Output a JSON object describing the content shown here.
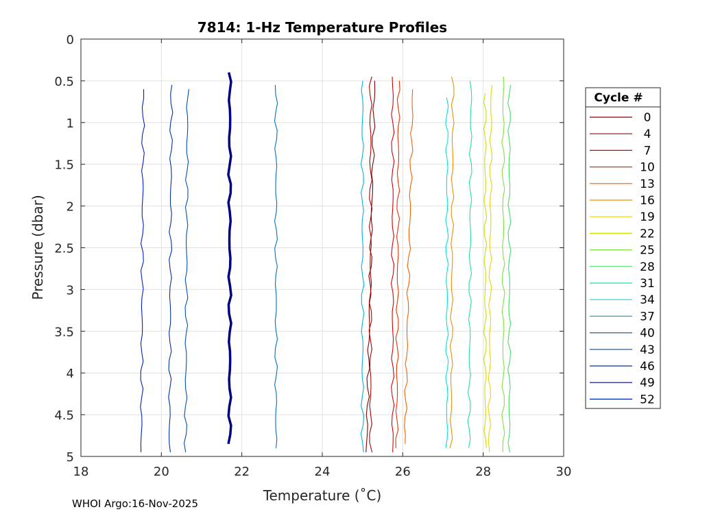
{
  "chart_data": {
    "type": "line",
    "title": "7814: 1-Hz Temperature Profiles",
    "xlabel": "Temperature (˚C)",
    "ylabel": "Pressure (dbar)",
    "xlim": [
      18,
      30
    ],
    "ylim": [
      0,
      5
    ],
    "y_reversed": true,
    "grid": true,
    "x_ticks": [
      18,
      20,
      22,
      24,
      26,
      28,
      30
    ],
    "y_ticks": [
      0,
      0.5,
      1,
      1.5,
      2,
      2.5,
      3,
      3.5,
      4,
      4.5,
      5
    ],
    "legend": {
      "title": "Cycle #",
      "placement": "right-outside",
      "entries": [
        {
          "label": "0",
          "color": "#7f0000"
        },
        {
          "label": "4",
          "color": "#a80000"
        },
        {
          "label": "7",
          "color": "#d40000"
        },
        {
          "label": "10",
          "color": "#e83000"
        },
        {
          "label": "13",
          "color": "#f06000"
        },
        {
          "label": "16",
          "color": "#e89000"
        },
        {
          "label": "19",
          "color": "#f0d000"
        },
        {
          "label": "22",
          "color": "#c8e000"
        },
        {
          "label": "25",
          "color": "#80e040"
        },
        {
          "label": "28",
          "color": "#40e060"
        },
        {
          "label": "31",
          "color": "#20e0a0"
        },
        {
          "label": "34",
          "color": "#00e0e0"
        },
        {
          "label": "37",
          "color": "#00b0e0"
        },
        {
          "label": "40",
          "color": "#0070c0"
        },
        {
          "label": "43",
          "color": "#0050b0"
        },
        {
          "label": "46",
          "color": "#0030a0"
        },
        {
          "label": "49",
          "color": "#000080"
        },
        {
          "label": "52",
          "color": "#0020c0"
        }
      ]
    },
    "series": [
      {
        "name": "0",
        "color": "#7f0000",
        "temp_top": 25.3,
        "temp_bottom": 25.1,
        "p_top": 0.5,
        "p_bottom": 4.95
      },
      {
        "name": "4",
        "color": "#a80000",
        "temp_top": 25.2,
        "temp_bottom": 25.2,
        "p_top": 0.45,
        "p_bottom": 4.95
      },
      {
        "name": "7",
        "color": "#d40000",
        "temp_top": 25.75,
        "temp_bottom": 25.75,
        "p_top": 0.45,
        "p_bottom": 4.95
      },
      {
        "name": "10",
        "color": "#e83000",
        "temp_top": 25.9,
        "temp_bottom": 25.85,
        "p_top": 0.5,
        "p_bottom": 4.9
      },
      {
        "name": "13",
        "color": "#f06000",
        "temp_top": 26.25,
        "temp_bottom": 26.05,
        "p_top": 0.6,
        "p_bottom": 4.85
      },
      {
        "name": "16",
        "color": "#e89000",
        "temp_top": 27.25,
        "temp_bottom": 27.2,
        "p_top": 0.45,
        "p_bottom": 4.9
      },
      {
        "name": "19",
        "color": "#f0d000",
        "temp_top": 28.2,
        "temp_bottom": 28.15,
        "p_top": 0.55,
        "p_bottom": 4.95
      },
      {
        "name": "22",
        "color": "#c8e000",
        "temp_top": 28.05,
        "temp_bottom": 28.05,
        "p_top": 0.65,
        "p_bottom": 4.9
      },
      {
        "name": "25",
        "color": "#80e040",
        "temp_top": 28.5,
        "temp_bottom": 28.5,
        "p_top": 0.45,
        "p_bottom": 4.95
      },
      {
        "name": "28",
        "color": "#40e060",
        "temp_top": 28.65,
        "temp_bottom": 28.65,
        "p_top": 0.55,
        "p_bottom": 4.95
      },
      {
        "name": "31",
        "color": "#20e0a0",
        "temp_top": 27.7,
        "temp_bottom": 27.65,
        "p_top": 0.5,
        "p_bottom": 4.9
      },
      {
        "name": "34",
        "color": "#00e0e0",
        "temp_top": 27.1,
        "temp_bottom": 27.1,
        "p_top": 0.7,
        "p_bottom": 4.9
      },
      {
        "name": "37",
        "color": "#00b0e0",
        "temp_top": 25.0,
        "temp_bottom": 25.0,
        "p_top": 0.5,
        "p_bottom": 4.95
      },
      {
        "name": "40",
        "color": "#0070c0",
        "temp_top": 22.85,
        "temp_bottom": 22.85,
        "p_top": 0.55,
        "p_bottom": 4.9
      },
      {
        "name": "43",
        "color": "#0050b0",
        "temp_top": 20.65,
        "temp_bottom": 20.6,
        "p_top": 0.6,
        "p_bottom": 4.95
      },
      {
        "name": "46",
        "color": "#0030a0",
        "temp_top": 20.25,
        "temp_bottom": 20.2,
        "p_top": 0.55,
        "p_bottom": 4.95
      },
      {
        "name": "49",
        "color": "#000080",
        "temp_top": 21.7,
        "temp_bottom": 21.7,
        "p_top": 0.4,
        "p_bottom": 4.85
      },
      {
        "name": "52",
        "color": "#0020c0",
        "temp_top": 19.55,
        "temp_bottom": 19.5,
        "p_top": 0.6,
        "p_bottom": 4.95
      }
    ]
  },
  "footer": {
    "credit": "WHOI Argo:16-Nov-2025"
  }
}
